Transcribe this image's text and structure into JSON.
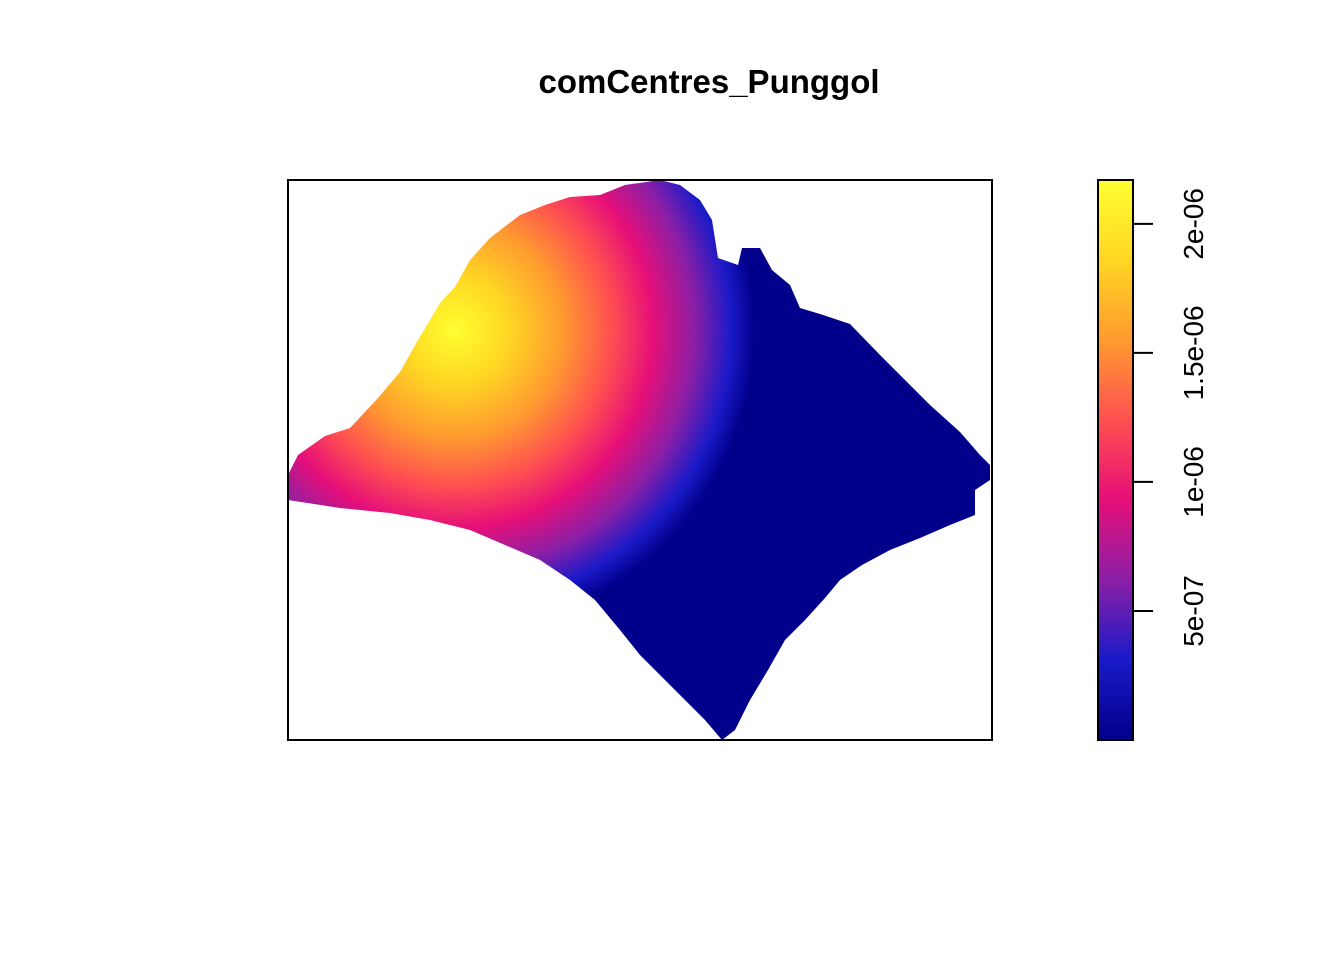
{
  "chart_data": {
    "type": "heatmap",
    "title": "comCentres_Punggol",
    "xlabel": "",
    "ylabel": "",
    "axes_shown": false,
    "legend_position": "right",
    "colorbar": {
      "palette": "plasma-like",
      "colors": [
        "#00008B",
        "#1A1AC8",
        "#8B1FA6",
        "#E60F78",
        "#FF5050",
        "#FF9A30",
        "#FFD623",
        "#FFFF30"
      ],
      "range": [
        0,
        2.17e-06
      ],
      "ticks": [
        {
          "value": 5e-07,
          "label": "5e-07"
        },
        {
          "value": 1e-06,
          "label": "1e-06"
        },
        {
          "value": 1.5e-06,
          "label": "1.5e-06"
        },
        {
          "value": 2e-06,
          "label": "2e-06"
        }
      ]
    },
    "density_peak": {
      "value": 2.17e-06,
      "region": "north-west"
    },
    "density_minimum_region": "south-east",
    "value_at_far_east": 0.0
  }
}
